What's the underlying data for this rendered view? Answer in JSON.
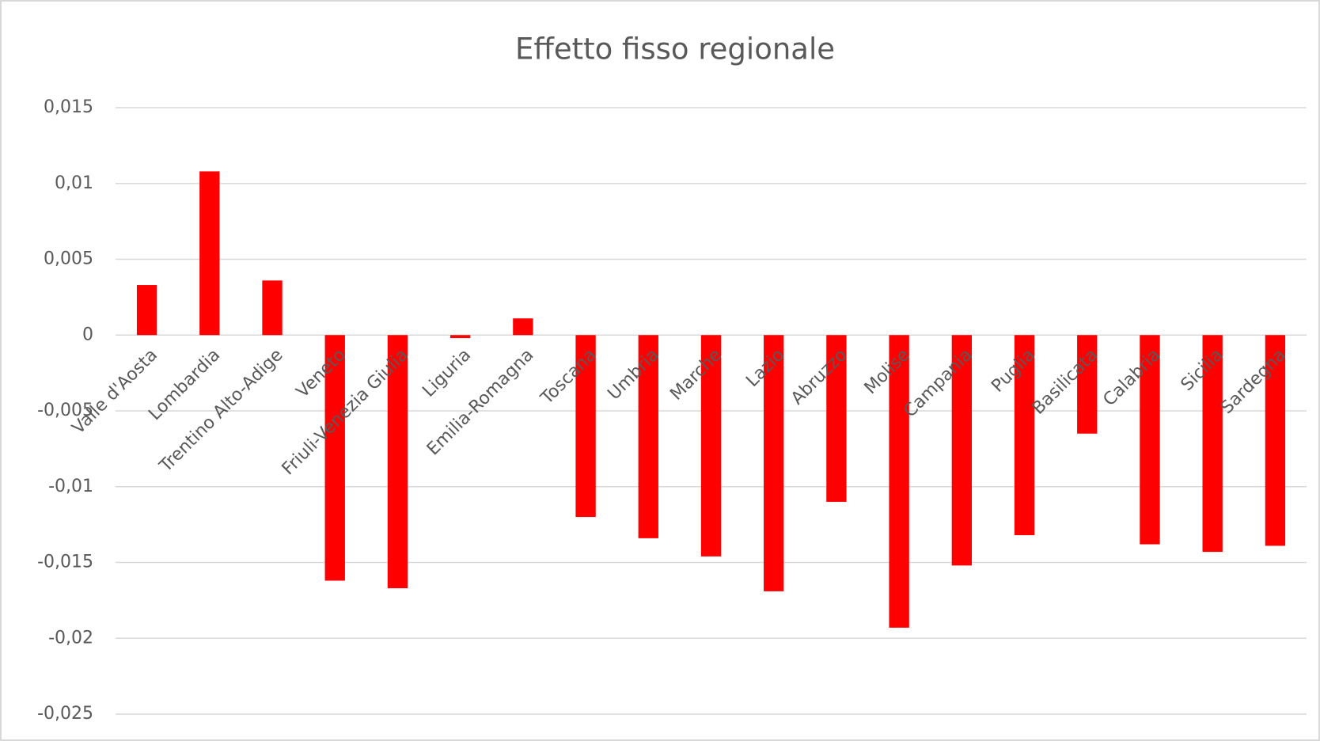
{
  "chart_data": {
    "type": "bar",
    "title": "Effetto fisso regionale",
    "categories": [
      "Valle d'Aosta",
      "Lombardia",
      "Trentino Alto-Adige",
      "Veneto",
      "Friuli-Venezia Giulia",
      "Liguria",
      "Emilia-Romagna",
      "Toscana",
      "Umbria",
      "Marche",
      "Lazio",
      "Abruzzo",
      "Molise",
      "Campania",
      "Puglia",
      "Basilicata",
      "Calabria",
      "Sicilia",
      "Sardegna"
    ],
    "values": [
      0.0033,
      0.0108,
      0.0036,
      -0.0162,
      -0.0167,
      -0.0002,
      0.0011,
      -0.012,
      -0.0134,
      -0.0146,
      -0.0169,
      -0.011,
      -0.0193,
      -0.0152,
      -0.0132,
      -0.0065,
      -0.0138,
      -0.0143,
      -0.0139
    ],
    "color": "#ff0000",
    "ylim": [
      -0.025,
      0.015
    ],
    "yticks": [
      {
        "value": -0.025,
        "label": "-0,025"
      },
      {
        "value": -0.02,
        "label": "-0,02"
      },
      {
        "value": -0.015,
        "label": "-0,015"
      },
      {
        "value": -0.01,
        "label": "-0,01"
      },
      {
        "value": -0.005,
        "label": "-0,005"
      },
      0,
      {
        "value": 0.005,
        "label": "0,005"
      },
      {
        "value": 0.01,
        "label": "0,01"
      },
      {
        "value": 0.015,
        "label": "0,015"
      }
    ],
    "grid": true
  }
}
